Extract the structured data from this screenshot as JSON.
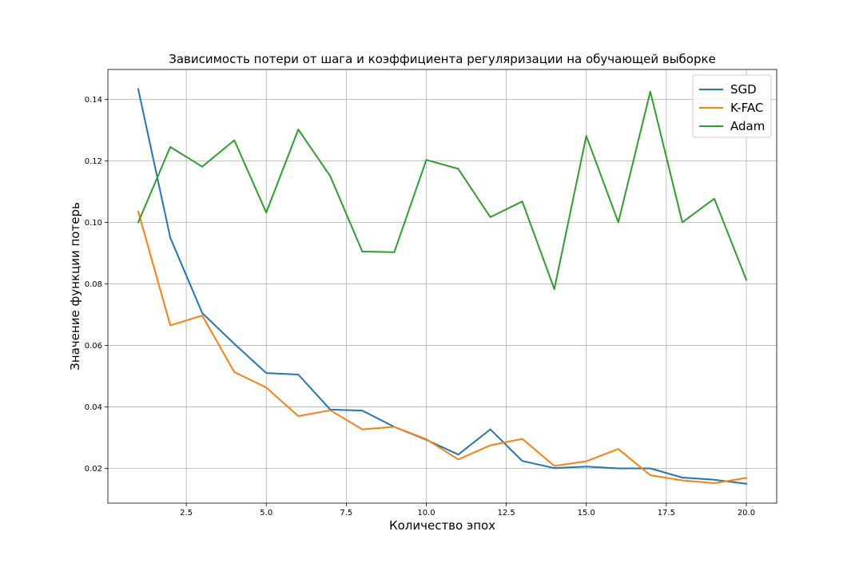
{
  "chart_data": {
    "type": "line",
    "title": "Зависимость потери от шага и коэффициента регуляризации на обучающей выборке",
    "xlabel": "Количество эпох",
    "ylabel": "Значение функции потерь",
    "xlim": [
      0.05,
      20.95
    ],
    "ylim": [
      0.0087,
      0.1497
    ],
    "x_ticks": [
      2.5,
      5.0,
      7.5,
      10.0,
      12.5,
      15.0,
      17.5,
      20.0
    ],
    "x_tick_labels": [
      "2.5",
      "5.0",
      "7.5",
      "10.0",
      "12.5",
      "15.0",
      "17.5",
      "20.0"
    ],
    "y_ticks": [
      0.02,
      0.04,
      0.06,
      0.08,
      0.1,
      0.12,
      0.14
    ],
    "y_tick_labels": [
      "0.02",
      "0.04",
      "0.06",
      "0.08",
      "0.10",
      "0.12",
      "0.14"
    ],
    "grid": true,
    "legend_position": "top-right",
    "x": [
      1,
      2,
      3,
      4,
      5,
      6,
      7,
      8,
      9,
      10,
      11,
      12,
      13,
      14,
      15,
      16,
      17,
      18,
      19,
      20
    ],
    "series": [
      {
        "name": "SGD",
        "color": "#1f77b4",
        "values": [
          0.1433,
          0.095,
          0.0705,
          0.0605,
          0.051,
          0.0505,
          0.0391,
          0.0388,
          0.0335,
          0.0293,
          0.0245,
          0.0327,
          0.0224,
          0.0201,
          0.0206,
          0.02,
          0.02,
          0.017,
          0.0163,
          0.015
        ]
      },
      {
        "name": "K-FAC",
        "color": "#ff7f0e",
        "values": [
          0.1035,
          0.0665,
          0.0697,
          0.0513,
          0.0463,
          0.037,
          0.0389,
          0.0327,
          0.0335,
          0.0295,
          0.0229,
          0.0275,
          0.0296,
          0.0208,
          0.0223,
          0.0263,
          0.0178,
          0.0161,
          0.0152,
          0.0169
        ]
      },
      {
        "name": "Adam",
        "color": "#2ca02c",
        "values": [
          0.1,
          0.1245,
          0.1181,
          0.1267,
          0.1032,
          0.1302,
          0.115,
          0.0905,
          0.0903,
          0.1203,
          0.1174,
          0.1017,
          0.1068,
          0.0783,
          0.1281,
          0.1,
          0.1425,
          0.1,
          0.1077,
          0.0813
        ]
      }
    ]
  }
}
